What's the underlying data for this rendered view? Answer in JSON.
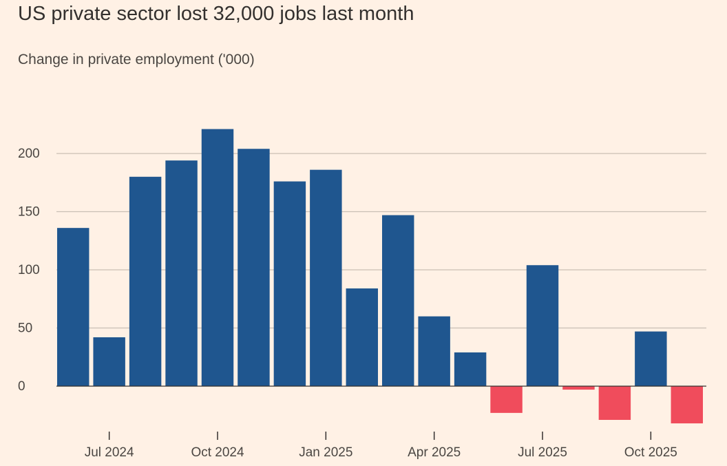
{
  "chart_data": {
    "type": "bar",
    "title": "US private sector lost 32,000 jobs last month",
    "subtitle": "Change in private employment ('000)",
    "categories": [
      "2024-06",
      "2024-07",
      "2024-08",
      "2024-09",
      "2024-10",
      "2024-11",
      "2024-12",
      "2025-01",
      "2025-02",
      "2025-03",
      "2025-04",
      "2025-05",
      "2025-06",
      "2025-07",
      "2025-08",
      "2025-09",
      "2025-10",
      "2025-11"
    ],
    "values": [
      136,
      42,
      180,
      194,
      221,
      204,
      176,
      186,
      84,
      147,
      60,
      29,
      -23,
      104,
      -3,
      -29,
      47,
      -32
    ],
    "ylim": [
      -36,
      230
    ],
    "yticks": [
      0,
      50,
      100,
      150,
      200
    ],
    "xtick_labels": [
      {
        "category": "2024-07",
        "label": "Jul 2024"
      },
      {
        "category": "2024-10",
        "label": "Oct 2024"
      },
      {
        "category": "2025-01",
        "label": "Jan 2025"
      },
      {
        "category": "2025-04",
        "label": "Apr 2025"
      },
      {
        "category": "2025-07",
        "label": "Jul 2025"
      },
      {
        "category": "2025-10",
        "label": "Oct 2025"
      }
    ],
    "grid": true,
    "colors": {
      "positive": "#1f568f",
      "negative": "#f04c5c",
      "grid": "#c9bfb5",
      "axis": "#33302e"
    }
  }
}
